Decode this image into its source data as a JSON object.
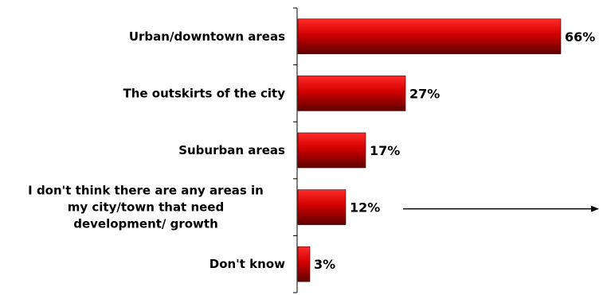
{
  "chart_data": {
    "type": "bar",
    "orientation": "horizontal",
    "categories": [
      [
        "Urban/downtown areas"
      ],
      [
        "The outskirts of the city"
      ],
      [
        "Suburban areas"
      ],
      [
        "I don't think there are any areas in",
        "my city/town that need",
        "development/ growth"
      ],
      [
        "Don't know"
      ]
    ],
    "values": [
      66,
      27,
      17,
      12,
      3
    ],
    "value_labels": [
      "66%",
      "27%",
      "17%",
      "12%",
      "3%"
    ],
    "unit": "%",
    "xlim": [
      0,
      70
    ],
    "title": "",
    "xlabel": "",
    "ylabel": "",
    "grid": false,
    "legend": "none",
    "colors": {
      "bar_light": "#ff2a2a",
      "bar_mid": "#d10000",
      "bar_dark": "#5e0000",
      "axis": "#000000"
    },
    "annotations": [
      {
        "type": "arrow",
        "points_to": "right",
        "near_category": 3
      }
    ]
  }
}
